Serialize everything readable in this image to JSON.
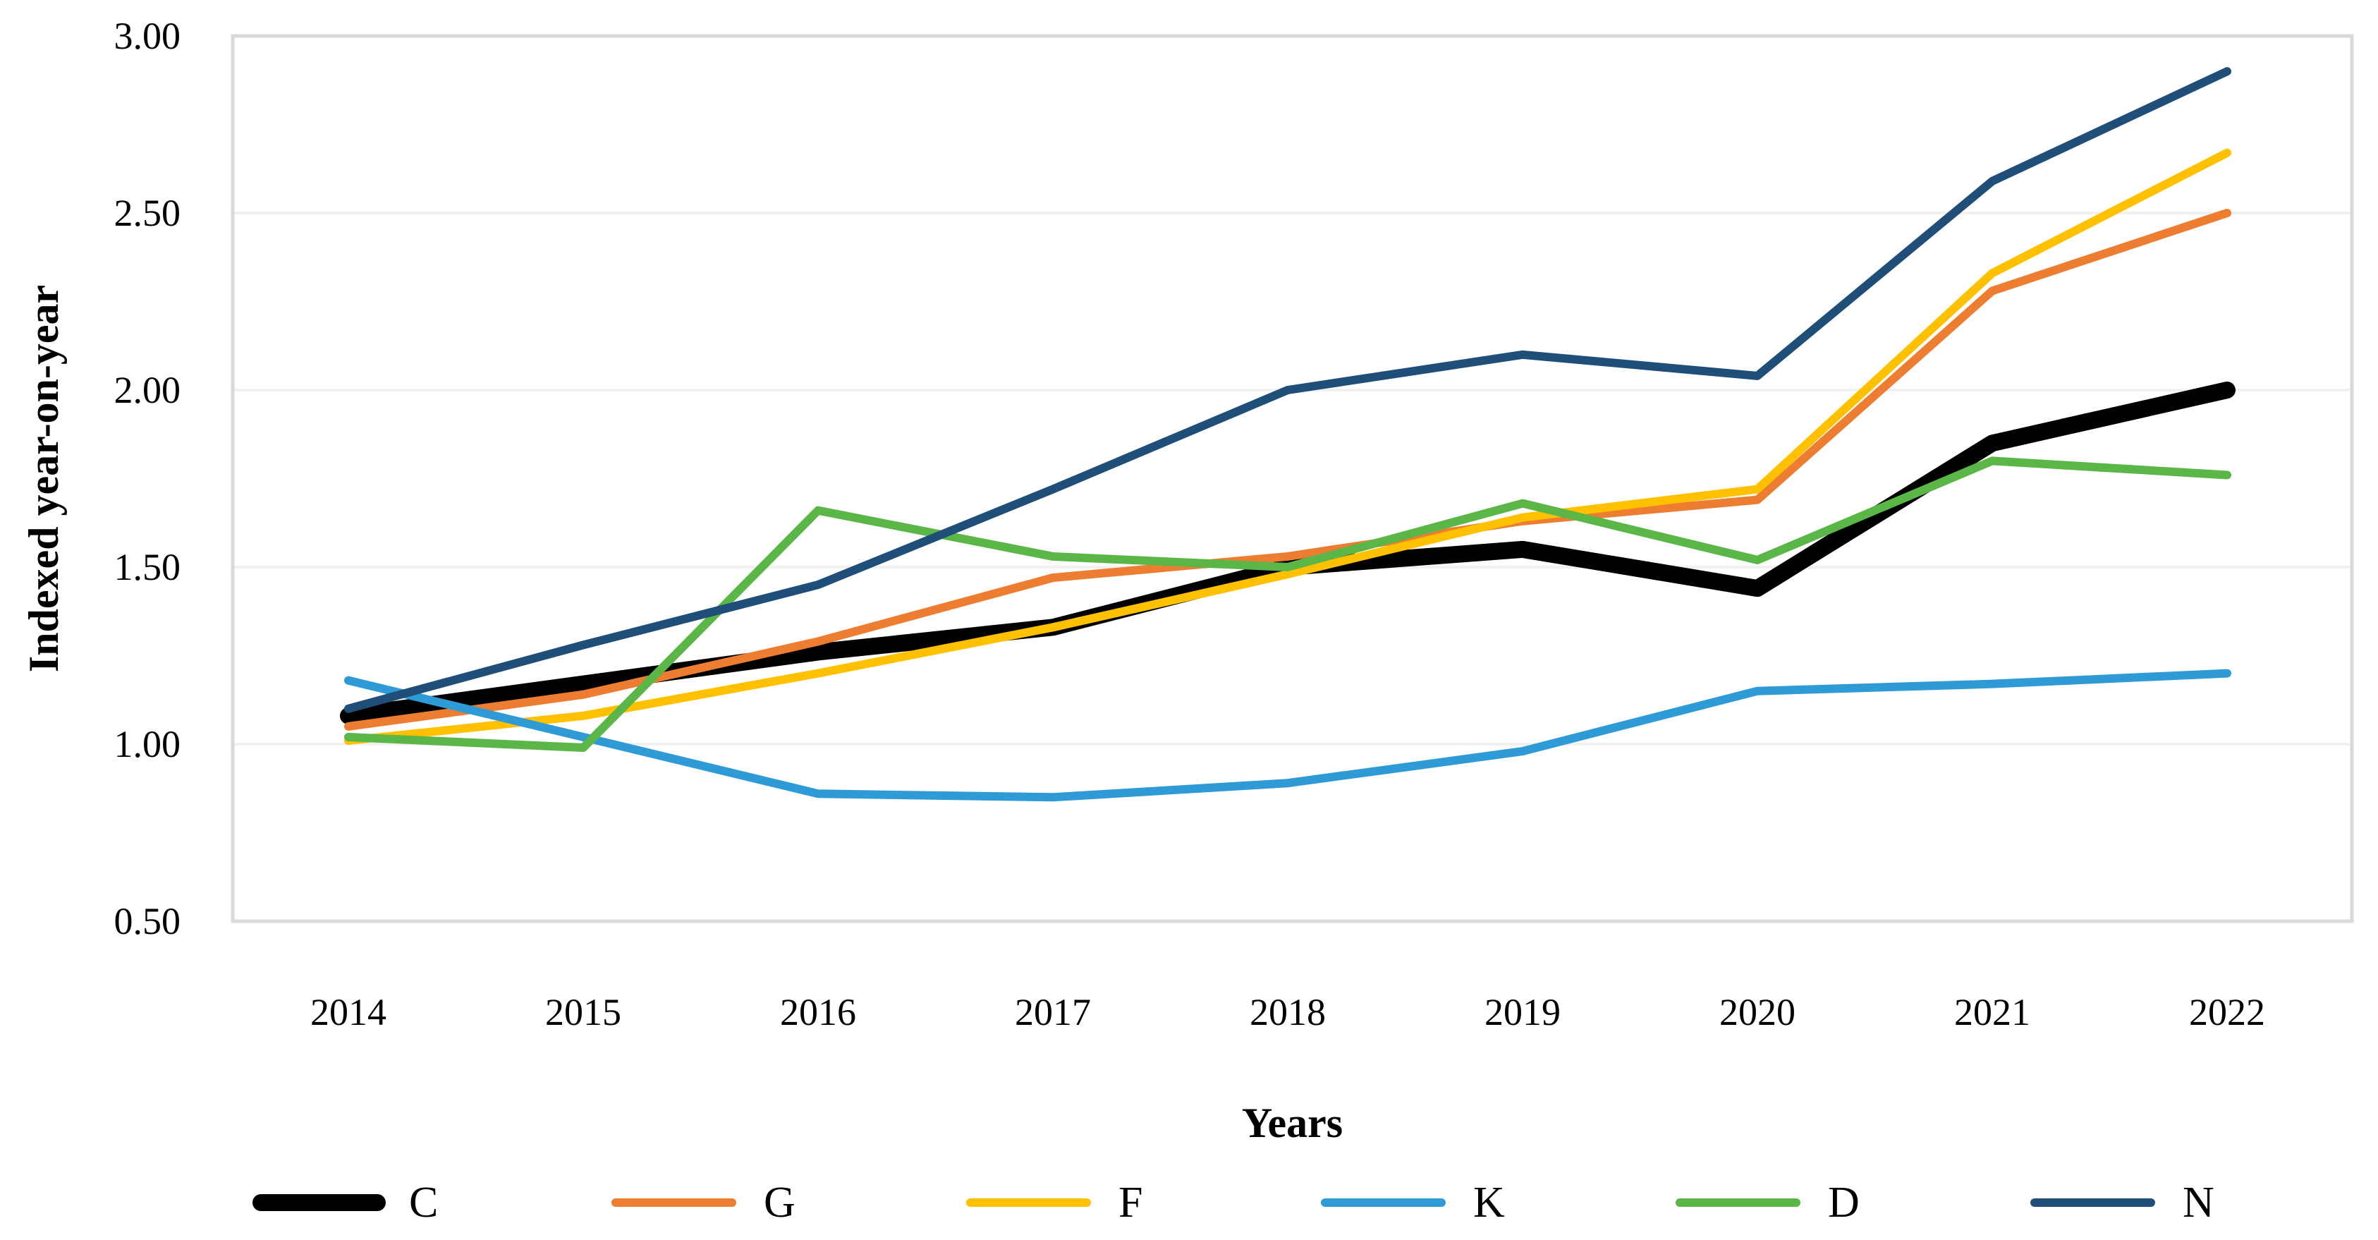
{
  "chart_data": {
    "type": "line",
    "title": "",
    "xlabel": "Years",
    "ylabel": "Indexed year-on-year",
    "x_categories": [
      "2014",
      "2015",
      "2016",
      "2017",
      "2018",
      "2019",
      "2020",
      "2021",
      "2022"
    ],
    "ylim": [
      0.5,
      3.0
    ],
    "ytick_labels": [
      "0.50",
      "1.00",
      "1.50",
      "2.00",
      "2.50",
      "3.00"
    ],
    "ytick_values": [
      0.5,
      1.0,
      1.5,
      2.0,
      2.5,
      3.0
    ],
    "grid": "horizontal",
    "legend_position": "bottom",
    "plot_border_color": "#d9d9d9",
    "gridline_color": "#f1f1f1",
    "background_color": "#ffffff",
    "series": [
      {
        "name": "C",
        "color": "#000000",
        "thick": true,
        "values": [
          1.08,
          1.17,
          1.26,
          1.33,
          1.5,
          1.55,
          1.44,
          1.85,
          2.0
        ]
      },
      {
        "name": "G",
        "color": "#ED7D31",
        "thick": false,
        "values": [
          1.05,
          1.14,
          1.29,
          1.47,
          1.53,
          1.63,
          1.69,
          2.28,
          2.5
        ]
      },
      {
        "name": "F",
        "color": "#FFC000",
        "thick": false,
        "values": [
          1.01,
          1.08,
          1.2,
          1.33,
          1.48,
          1.64,
          1.72,
          2.33,
          2.67
        ]
      },
      {
        "name": "K",
        "color": "#2E9BD6",
        "thick": false,
        "values": [
          1.18,
          1.02,
          0.86,
          0.85,
          0.89,
          0.98,
          1.15,
          1.17,
          1.2
        ]
      },
      {
        "name": "D",
        "color": "#5BB648",
        "thick": false,
        "values": [
          1.02,
          0.99,
          1.66,
          1.53,
          1.5,
          1.68,
          1.52,
          1.8,
          1.76
        ]
      },
      {
        "name": "N",
        "color": "#1F4E79",
        "thick": false,
        "values": [
          1.1,
          1.28,
          1.45,
          1.72,
          2.0,
          2.1,
          2.04,
          2.59,
          2.9
        ]
      }
    ]
  }
}
